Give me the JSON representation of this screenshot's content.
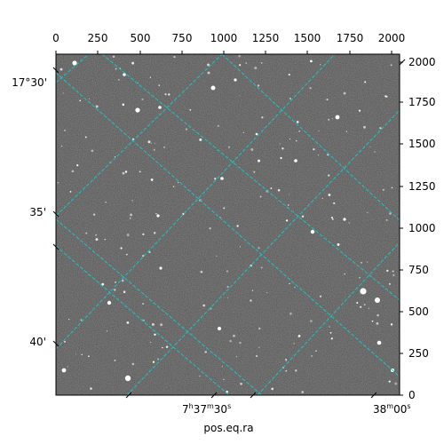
{
  "plot": {
    "xlabel": "pos.eq.ra",
    "top_axis_ticks": [
      "0",
      "250",
      "500",
      "750",
      "1000",
      "1250",
      "1500",
      "1750",
      "2000"
    ],
    "right_axis_ticks": [
      "0",
      "250",
      "500",
      "750",
      "1000",
      "1250",
      "1500",
      "1750",
      "2000"
    ],
    "dec_labels": [
      "17°30'",
      "35'",
      "40'"
    ],
    "ra_labels": [
      {
        "base": "7",
        "sup1": "h",
        "mid": "37",
        "sup2": "m",
        "tail": "30",
        "sup3": "s"
      },
      {
        "base": "38",
        "sup1": "m",
        "mid": "00",
        "sup2": "s",
        "tail": "",
        "sup3": ""
      }
    ],
    "pixel_range": [
      0,
      2048
    ],
    "grid_color": "#19c4c4",
    "image_style": "grayscale star field"
  }
}
